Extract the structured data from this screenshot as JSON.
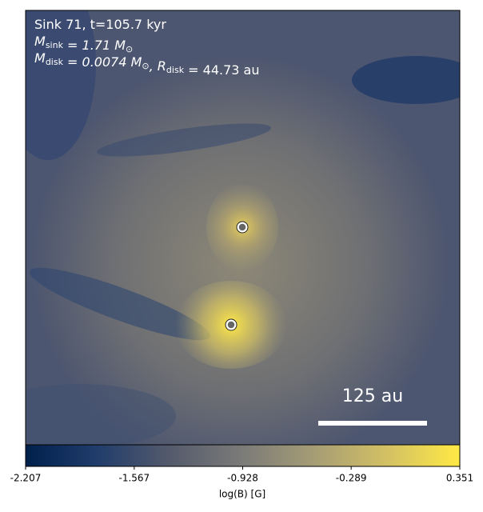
{
  "chart_data": {
    "type": "colormap",
    "annotation_lines": [
      [
        {
          "text": "Sink 71, t=105.7 kyr"
        }
      ],
      [
        {
          "text": "M"
        },
        {
          "sub": "sink"
        },
        {
          "text": " = 1.71 M"
        },
        {
          "sub": "⊙"
        }
      ],
      [
        {
          "text": "M"
        },
        {
          "sub": "disk"
        },
        {
          "text": " = 0.0074 M"
        },
        {
          "sub": "⊙"
        },
        {
          "text": ", R"
        },
        {
          "sub": "disk"
        },
        {
          "text": " = 44.73 au"
        }
      ]
    ],
    "scale_bar_label": "125 au",
    "colorbar": {
      "label": "log(B) [G]",
      "lim": [
        -2.207,
        0.351
      ],
      "ticks": [
        -2.207,
        -1.567,
        -0.928,
        -0.289,
        0.351
      ],
      "colors": [
        "#00204c",
        "#213d6b",
        "#555b6c",
        "#7b7b78",
        "#a69d75",
        "#d3c164",
        "#ffe945"
      ]
    }
  }
}
